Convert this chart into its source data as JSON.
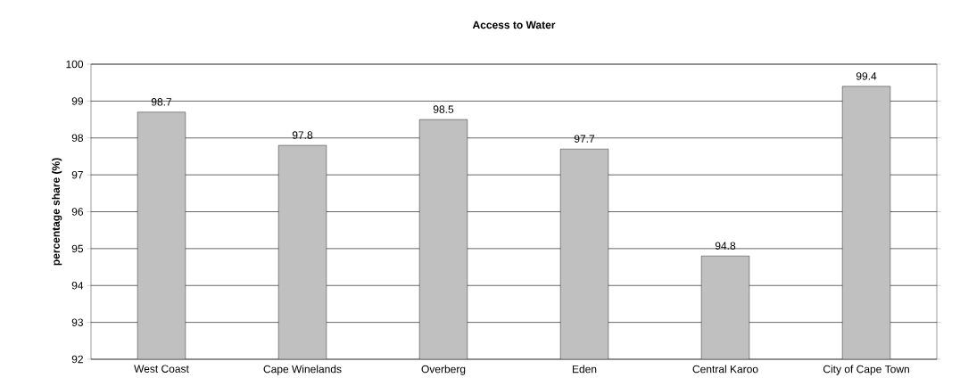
{
  "chart_data": {
    "type": "bar",
    "title": "Access to Water",
    "ylabel": "percentage share (%)",
    "categories": [
      "West Coast",
      "Cape Winelands",
      "Overberg",
      "Eden",
      "Central Karoo",
      "City of Cape Town"
    ],
    "values": [
      98.7,
      97.8,
      98.5,
      97.7,
      94.8,
      99.4
    ],
    "color": "#c0c0c0",
    "ylim": [
      92,
      100
    ],
    "yticks": [
      92,
      93,
      94,
      95,
      96,
      97,
      98,
      99,
      100
    ],
    "grid": "y",
    "data_labels": true
  }
}
